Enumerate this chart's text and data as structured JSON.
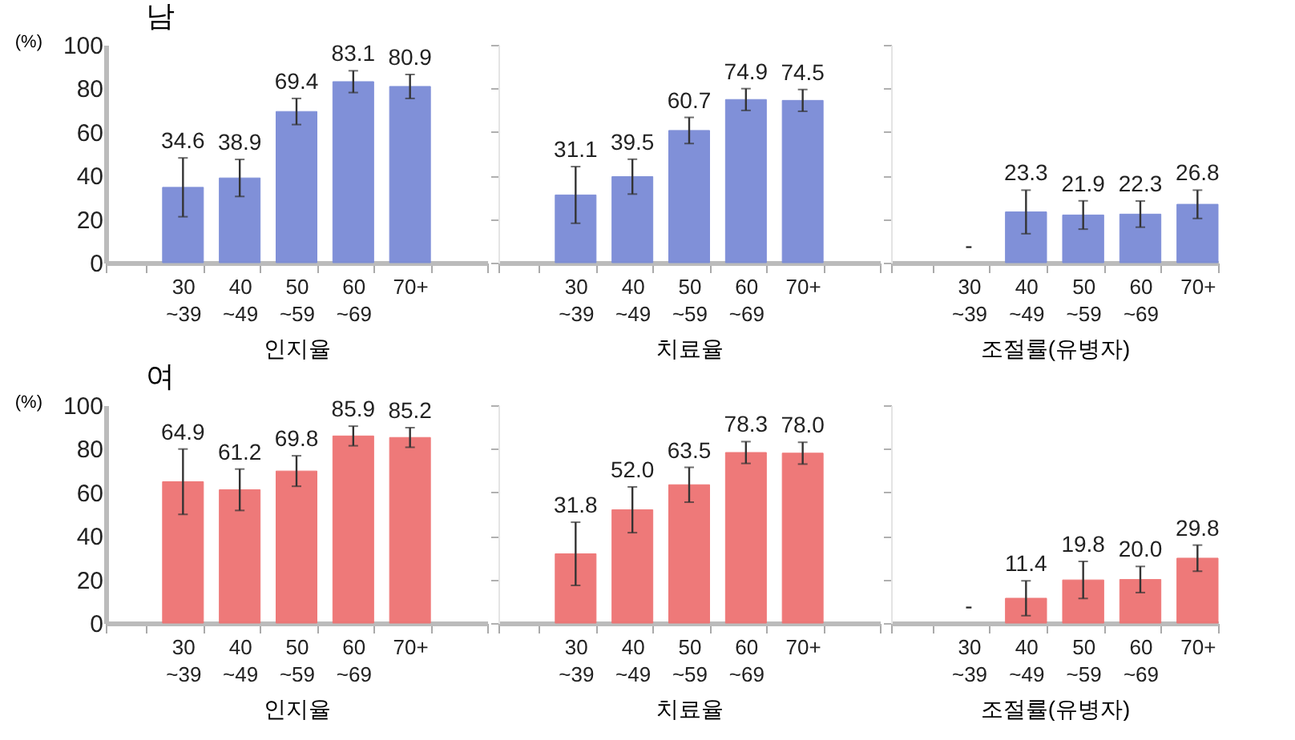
{
  "chart_data": [
    {
      "type": "bar",
      "title": "남",
      "ylabel": "(%)",
      "xlabel": "인지율",
      "color": "#7a8bd6",
      "categories": [
        null,
        "30\n~39",
        "40\n~49",
        "50\n~59",
        "60\n~69",
        "70+",
        null
      ],
      "values": [
        null,
        34.6,
        38.9,
        69.4,
        83.1,
        80.9,
        null
      ],
      "errors": [
        null,
        13.5,
        8.5,
        6,
        5,
        5.5,
        null
      ],
      "value_labels": [
        null,
        "34.6",
        "38.9",
        "69.4",
        "83.1",
        "80.9",
        null
      ],
      "ylim": [
        0,
        100
      ],
      "yticks": [
        0,
        20,
        40,
        60,
        80,
        100
      ]
    },
    {
      "type": "bar",
      "xlabel": "치료율",
      "color": "#7a8bd6",
      "categories": [
        null,
        "30\n~39",
        "40\n~49",
        "50\n~59",
        "60\n~69",
        "70+",
        null
      ],
      "values": [
        null,
        31.1,
        39.5,
        60.7,
        74.9,
        74.5,
        null
      ],
      "errors": [
        null,
        13,
        8,
        6,
        5,
        5,
        null
      ],
      "value_labels": [
        null,
        "31.1",
        "39.5",
        "60.7",
        "74.9",
        "74.5",
        null
      ],
      "ylim": [
        0,
        100
      ],
      "yticks": [
        0,
        20,
        40,
        60,
        80,
        100
      ],
      "tick_labels": "x"
    },
    {
      "type": "bar",
      "xlabel": "조절률(유병자)",
      "color": "#7a8bd6",
      "categories": [
        null,
        "30\n~39",
        "40\n~49",
        "50\n~59",
        "60\n~69",
        "70+"
      ],
      "values": [
        null,
        null,
        23.3,
        21.9,
        22.3,
        26.8
      ],
      "errors": [
        null,
        null,
        10,
        6.5,
        6,
        6.5
      ],
      "value_labels": [
        null,
        "-",
        "23.3",
        "21.9",
        "22.3",
        "26.8"
      ],
      "ylim": [
        0,
        100
      ],
      "yticks": [
        0,
        20,
        40,
        60,
        80,
        100
      ],
      "tick_labels": "x"
    },
    {
      "type": "bar",
      "title": "여",
      "ylabel": "(%)",
      "xlabel": "인지율",
      "color": "#ee7272",
      "categories": [
        null,
        "30\n~39",
        "40\n~49",
        "50\n~59",
        "60\n~69",
        "70+",
        null
      ],
      "values": [
        null,
        64.9,
        61.2,
        69.8,
        85.9,
        85.2,
        null
      ],
      "errors": [
        null,
        15,
        9.5,
        7,
        4.5,
        4.5,
        null
      ],
      "value_labels": [
        null,
        "64.9",
        "61.2",
        "69.8",
        "85.9",
        "85.2",
        null
      ],
      "ylim": [
        0,
        100
      ],
      "yticks": [
        0,
        20,
        40,
        60,
        80,
        100
      ]
    },
    {
      "type": "bar",
      "xlabel": "치료율",
      "color": "#ee7272",
      "categories": [
        null,
        "30\n~39",
        "40\n~49",
        "50\n~59",
        "60\n~69",
        "70+",
        null
      ],
      "values": [
        null,
        31.8,
        52.0,
        63.5,
        78.3,
        78.0,
        null
      ],
      "errors": [
        null,
        14.5,
        10.5,
        8,
        5,
        5,
        null
      ],
      "value_labels": [
        null,
        "31.8",
        "52.0",
        "63.5",
        "78.3",
        "78.0",
        null
      ],
      "ylim": [
        0,
        100
      ],
      "yticks": [
        0,
        20,
        40,
        60,
        80,
        100
      ],
      "tick_labels": "x"
    },
    {
      "type": "bar",
      "xlabel": "조절률(유병자)",
      "color": "#ee7272",
      "categories": [
        null,
        "30\n~39",
        "40\n~49",
        "50\n~59",
        "60\n~69",
        "70+"
      ],
      "values": [
        null,
        null,
        11.4,
        19.8,
        20.0,
        29.8
      ],
      "errors": [
        null,
        null,
        8,
        8.5,
        6,
        6
      ],
      "value_labels": [
        null,
        "-",
        "11.4",
        "19.8",
        "20.0",
        "29.8"
      ],
      "ylim": [
        0,
        100
      ],
      "yticks": [
        0,
        20,
        40,
        60,
        80,
        100
      ],
      "tick_labels": "x"
    }
  ]
}
